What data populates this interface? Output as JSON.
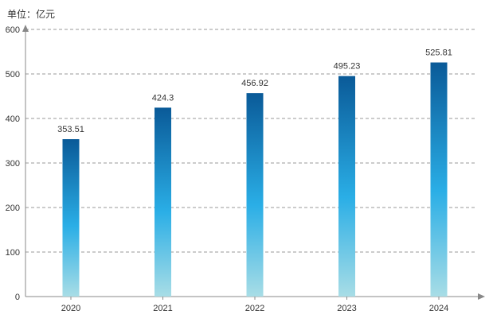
{
  "chart_data": {
    "type": "bar",
    "unit_label": "单位：亿元",
    "categories": [
      "2020",
      "2021",
      "2022",
      "2023",
      "2024"
    ],
    "values": [
      353.51,
      424.3,
      456.92,
      495.23,
      525.81
    ],
    "value_labels": [
      "353.51",
      "424.3",
      "456.92",
      "495.23",
      "525.81"
    ],
    "yticks": [
      "0",
      "100",
      "200",
      "300",
      "400",
      "500",
      "600"
    ],
    "ylim": [
      0,
      600
    ],
    "grid": true,
    "grid_style": "dashed",
    "colors": {
      "bar_top": "#0a5a98",
      "bar_mid": "#2aaee6",
      "bar_bottom": "#a8dde6",
      "axis": "#888888",
      "grid": "#999999",
      "text": "#333333"
    }
  }
}
